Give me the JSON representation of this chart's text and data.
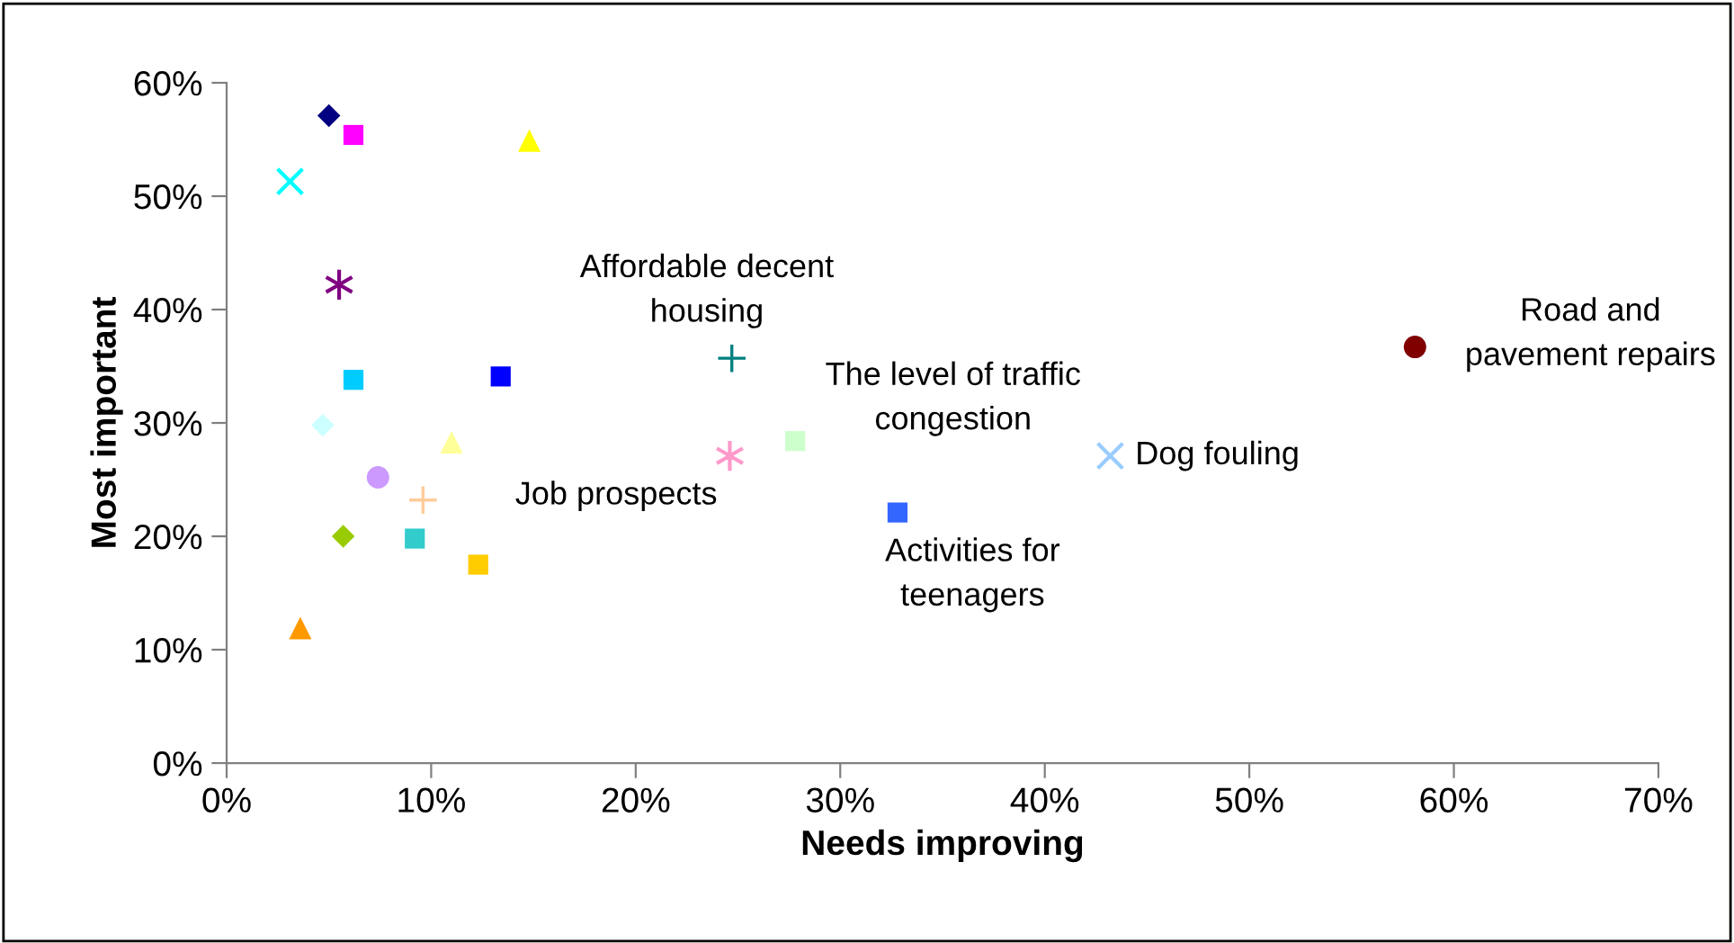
{
  "chart_data": {
    "type": "scatter",
    "xlabel": "Needs improving",
    "ylabel": "Most important",
    "xlim": [
      0,
      70
    ],
    "ylim": [
      0,
      60
    ],
    "xticks": [
      {
        "value": 0,
        "label": "0%"
      },
      {
        "value": 10,
        "label": "10%"
      },
      {
        "value": 20,
        "label": "20%"
      },
      {
        "value": 30,
        "label": "30%"
      },
      {
        "value": 40,
        "label": "40%"
      },
      {
        "value": 50,
        "label": "50%"
      },
      {
        "value": 60,
        "label": "60%"
      },
      {
        "value": 70,
        "label": "70%"
      }
    ],
    "yticks": [
      {
        "value": 0,
        "label": "0%"
      },
      {
        "value": 10,
        "label": "10%"
      },
      {
        "value": 20,
        "label": "20%"
      },
      {
        "value": 30,
        "label": "30%"
      },
      {
        "value": 40,
        "label": "40%"
      },
      {
        "value": 50,
        "label": "50%"
      },
      {
        "value": 60,
        "label": "60%"
      }
    ],
    "grid": false,
    "legend": false,
    "series": [
      {
        "color": "#000080",
        "marker": "diamond",
        "x": [
          5.0
        ],
        "values": [
          57.1
        ]
      },
      {
        "color": "#ff00ff",
        "marker": "square",
        "x": [
          6.2
        ],
        "values": [
          55.4
        ]
      },
      {
        "color": "#ffff00",
        "marker": "triangle",
        "x": [
          14.8
        ],
        "values": [
          54.9
        ]
      },
      {
        "color": "#00ffff",
        "marker": "x",
        "x": [
          3.1
        ],
        "values": [
          51.3
        ]
      },
      {
        "color": "#800080",
        "marker": "cross",
        "x": [
          5.5
        ],
        "values": [
          42.2
        ]
      },
      {
        "color": "#00ccff",
        "marker": "square",
        "x": [
          6.2
        ],
        "values": [
          33.8
        ]
      },
      {
        "color": "#0000ff",
        "marker": "square",
        "x": [
          13.4
        ],
        "values": [
          34.1
        ]
      },
      {
        "color": "#ccffff",
        "marker": "diamond",
        "x": [
          4.7
        ],
        "values": [
          29.8
        ]
      },
      {
        "color": "#ffff99",
        "marker": "triangle",
        "x": [
          11.0
        ],
        "values": [
          28.3
        ]
      },
      {
        "color": "#cc99ff",
        "marker": "circle",
        "x": [
          7.4
        ],
        "values": [
          25.2
        ]
      },
      {
        "color": "#ffcc99",
        "marker": "plus",
        "x": [
          9.6
        ],
        "values": [
          23.2
        ]
      },
      {
        "color": "#99cc00",
        "marker": "diamond",
        "x": [
          5.7
        ],
        "values": [
          20.0
        ]
      },
      {
        "color": "#33cccc",
        "marker": "square",
        "x": [
          9.2
        ],
        "values": [
          19.8
        ]
      },
      {
        "color": "#ffcc00",
        "marker": "square",
        "x": [
          12.3
        ],
        "values": [
          17.5
        ]
      },
      {
        "color": "#ff9900",
        "marker": "triangle",
        "x": [
          3.6
        ],
        "values": [
          11.9
        ]
      },
      {
        "name": "Affordable decent\nhousing",
        "color": "#008080",
        "marker": "plus",
        "x": [
          24.7
        ],
        "values": [
          35.7
        ]
      },
      {
        "name": "Job prospects",
        "color": "#ff99cc",
        "marker": "cross",
        "x": [
          24.6
        ],
        "values": [
          27.1
        ]
      },
      {
        "name": "The level of traffic\ncongestion",
        "color": "#ccffcc",
        "marker": "square",
        "x": [
          27.8
        ],
        "values": [
          28.4
        ]
      },
      {
        "name": "Dog fouling",
        "color": "#99ccff",
        "marker": "x",
        "x": [
          43.2
        ],
        "values": [
          27.1
        ]
      },
      {
        "name": "Activities for\nteenagers",
        "color": "#3366ff",
        "marker": "square",
        "x": [
          32.8
        ],
        "values": [
          22.1
        ]
      },
      {
        "name": "Road and\npavement repairs",
        "color": "#800000",
        "marker": "circle",
        "x": [
          58.1
        ],
        "values": [
          36.7
        ]
      }
    ]
  }
}
